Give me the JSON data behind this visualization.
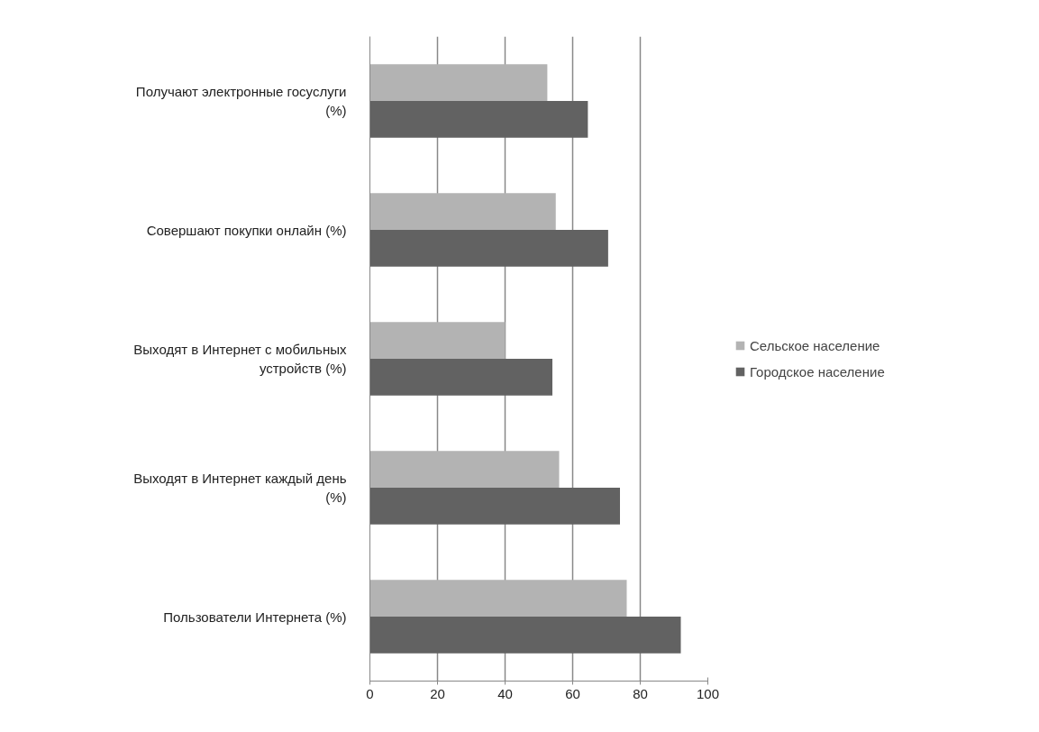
{
  "chart_data": {
    "type": "bar",
    "orientation": "horizontal",
    "categories": [
      "Получают электронные госуслуги (%)",
      "Совершают покупки онлайн (%)",
      "Выходят в Интернет с мобильных устройств (%)",
      "Выходят в Интернет каждый день (%)",
      "Пользователи Интернета (%)"
    ],
    "series": [
      {
        "name": "Сельское население",
        "color": "#b3b3b3",
        "values": [
          52.5,
          55,
          40,
          56,
          76
        ]
      },
      {
        "name": "Городское население",
        "color": "#626262",
        "values": [
          64.5,
          70.5,
          54,
          74,
          92
        ]
      }
    ],
    "xlim": [
      0,
      100
    ],
    "xticks": [
      0,
      20,
      40,
      60,
      80,
      100
    ],
    "grid": "x",
    "legend": "right"
  }
}
